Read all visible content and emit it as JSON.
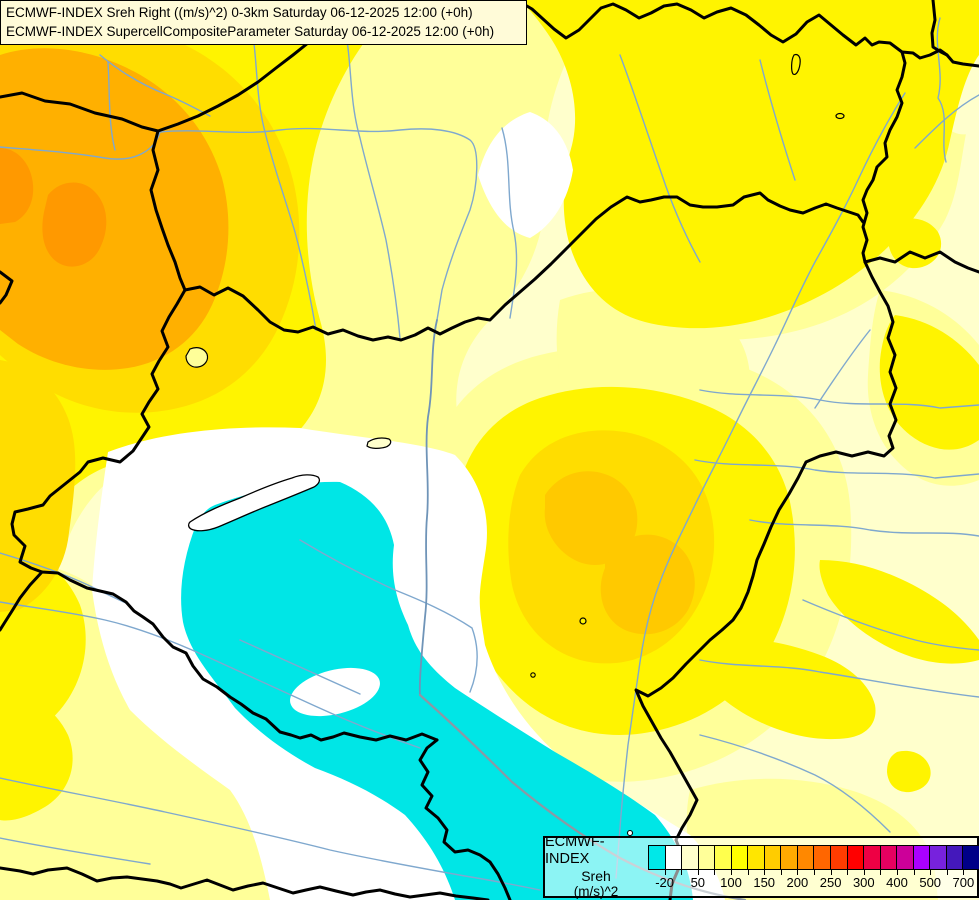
{
  "titles": {
    "line1": "ECMWF-INDEX Sreh Right ((m/s)^2) 0-3km Saturday 06-12-2025 12:00 (+0h)",
    "line2": "ECMWF-INDEX SupercellCompositeParameter Saturday 06-12-2025 12:00 (+0h)"
  },
  "legend": {
    "product": "ECMWF-INDEX",
    "parameter": "Sreh",
    "units": "(m/s)^2",
    "cells": [
      "#00E8E8",
      "#FFFFFF",
      "#FFFFCC",
      "#FFFF99",
      "#FFFF4D",
      "#FFFF00",
      "#FFE600",
      "#FFCC00",
      "#FFAA00",
      "#FF8800",
      "#FF6600",
      "#FF3C00",
      "#FF0000",
      "#EE0044",
      "#E60060",
      "#CC0099",
      "#AA00FF",
      "#7722DD",
      "#4418BB",
      "#000088"
    ],
    "tick_labels": [
      "-20",
      "50",
      "100",
      "150",
      "200",
      "250",
      "300",
      "400",
      "500",
      "700"
    ],
    "tick_cell_boundaries": [
      1,
      3,
      5,
      7,
      9,
      11,
      13,
      15,
      17,
      19
    ]
  },
  "map_colors": {
    "background_low": "#FFFFCC",
    "pale_yellow": "#FFFF99",
    "bright_yellow": "#FFF400",
    "gold": "#FFDD00",
    "deep_gold": "#FFC900",
    "orange": "#FFB000",
    "deep_orange": "#FF9900",
    "negative_cyan": "#00E6E6",
    "near_zero_white": "#FFFFFF",
    "country_border": "#000000",
    "river": "#7FA8CE",
    "river_major_gray": "#8C98A4"
  }
}
